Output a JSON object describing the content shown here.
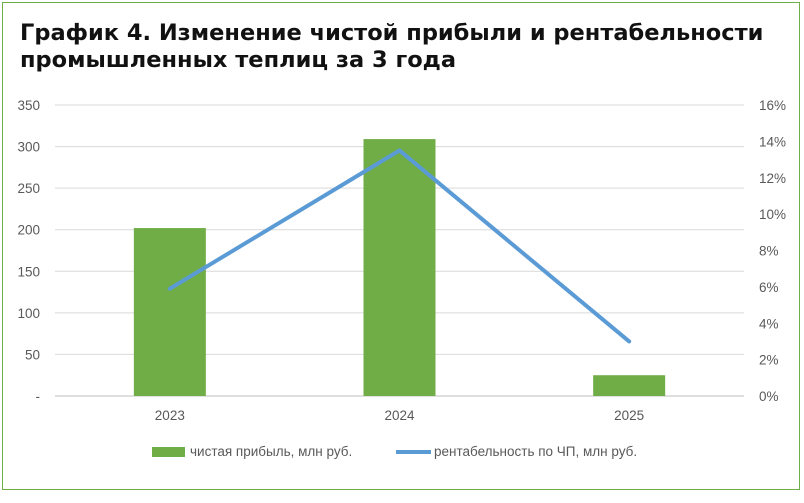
{
  "title": {
    "line1": "График 4. Изменение чистой прибыли и рентабельности",
    "line2": "промышленных теплиц за 3 года"
  },
  "chart_data": {
    "type": "bar",
    "categories": [
      "2023",
      "2024",
      "2025"
    ],
    "series": [
      {
        "name": "чистая прибыль, млн руб.",
        "type": "bar",
        "axis": "left",
        "color": "#70ad47",
        "values": [
          202,
          309,
          25
        ]
      },
      {
        "name": "рентабельность по ЧП, млн руб.",
        "type": "line",
        "axis": "right",
        "color": "#5b9bd5",
        "values": [
          5.9,
          13.5,
          3.0
        ]
      }
    ],
    "y_left": {
      "ticks": [
        0,
        50,
        100,
        150,
        200,
        250,
        300,
        350
      ],
      "tick_labels": [
        "-",
        "50",
        "100",
        "150",
        "200",
        "250",
        "300",
        "350"
      ],
      "ylim": [
        0,
        350
      ]
    },
    "y_right": {
      "ticks": [
        0,
        2,
        4,
        6,
        8,
        10,
        12,
        14,
        16
      ],
      "tick_labels": [
        "0%",
        "2%",
        "4%",
        "6%",
        "8%",
        "10%",
        "12%",
        "14%",
        "16%"
      ],
      "ylim": [
        0,
        16
      ]
    },
    "grid": true,
    "legend_position": "bottom"
  }
}
